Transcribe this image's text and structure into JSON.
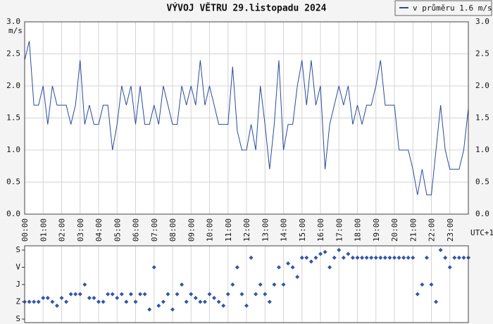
{
  "chart_data": [
    {
      "type": "line",
      "title": "VÝVOJ VĚTRU  29.listopadu 2024",
      "y_label": "m/s",
      "x_label": "UTC+1",
      "legend": "top-right",
      "grid": true,
      "xlim": [
        0,
        1440
      ],
      "xticks": [
        {
          "value": 0,
          "label": "00:00"
        },
        {
          "value": 60,
          "label": "01:00"
        },
        {
          "value": 120,
          "label": "02:00"
        },
        {
          "value": 180,
          "label": "03:00"
        },
        {
          "value": 240,
          "label": "04:00"
        },
        {
          "value": 300,
          "label": "05:00"
        },
        {
          "value": 360,
          "label": "06:00"
        },
        {
          "value": 420,
          "label": "07:00"
        },
        {
          "value": 480,
          "label": "08:00"
        },
        {
          "value": 540,
          "label": "09:00"
        },
        {
          "value": 600,
          "label": "10:00"
        },
        {
          "value": 660,
          "label": "11:00"
        },
        {
          "value": 720,
          "label": "12:00"
        },
        {
          "value": 780,
          "label": "13:00"
        },
        {
          "value": 840,
          "label": "14:00"
        },
        {
          "value": 900,
          "label": "15:00"
        },
        {
          "value": 960,
          "label": "16:00"
        },
        {
          "value": 1020,
          "label": "17:00"
        },
        {
          "value": 1080,
          "label": "18:00"
        },
        {
          "value": 1140,
          "label": "19:00"
        },
        {
          "value": 1200,
          "label": "20:00"
        },
        {
          "value": 1260,
          "label": "21:00"
        },
        {
          "value": 1320,
          "label": "22:00"
        },
        {
          "value": 1380,
          "label": "23:00"
        }
      ],
      "ylim": [
        0,
        3
      ],
      "yticks": [
        {
          "value": 0,
          "label": "0.0"
        },
        {
          "value": 0.5,
          "label": "0.5"
        },
        {
          "value": 1,
          "label": "1.0"
        },
        {
          "value": 1.5,
          "label": "1.5"
        },
        {
          "value": 2,
          "label": "2.0"
        },
        {
          "value": 2.5,
          "label": "2.5"
        },
        {
          "value": 3,
          "label": "3.0"
        }
      ],
      "x": [
        0,
        15,
        30,
        45,
        60,
        75,
        90,
        105,
        120,
        135,
        150,
        165,
        180,
        195,
        210,
        225,
        240,
        255,
        270,
        285,
        300,
        315,
        330,
        345,
        360,
        375,
        390,
        405,
        420,
        435,
        450,
        465,
        480,
        495,
        510,
        525,
        540,
        555,
        570,
        585,
        600,
        615,
        630,
        645,
        660,
        675,
        690,
        705,
        720,
        735,
        750,
        765,
        780,
        795,
        810,
        825,
        840,
        855,
        870,
        885,
        900,
        915,
        930,
        945,
        960,
        975,
        990,
        1005,
        1020,
        1035,
        1050,
        1065,
        1080,
        1095,
        1110,
        1125,
        1140,
        1155,
        1170,
        1185,
        1200,
        1215,
        1230,
        1245,
        1260,
        1275,
        1290,
        1305,
        1320,
        1335,
        1350,
        1365,
        1380,
        1395,
        1410,
        1425,
        1440
      ],
      "series": [
        {
          "name": "v průměru 1.6 m/s",
          "color": "#2a4a9a",
          "values": [
            2.4,
            2.7,
            1.7,
            1.7,
            2.0,
            1.4,
            2.0,
            1.7,
            1.7,
            1.7,
            1.4,
            1.7,
            2.4,
            1.4,
            1.7,
            1.4,
            1.4,
            1.7,
            1.7,
            1.0,
            1.4,
            2.0,
            1.7,
            2.0,
            1.4,
            2.0,
            1.4,
            1.4,
            1.7,
            1.4,
            2.0,
            1.7,
            1.4,
            1.4,
            2.0,
            1.7,
            2.0,
            1.7,
            2.4,
            1.7,
            2.0,
            1.7,
            1.4,
            1.4,
            1.4,
            2.3,
            1.3,
            1.0,
            1.0,
            1.4,
            1.0,
            2.0,
            1.4,
            0.7,
            1.4,
            2.4,
            1.0,
            1.4,
            1.4,
            2.0,
            2.4,
            1.7,
            2.4,
            1.7,
            2.0,
            0.7,
            1.4,
            1.7,
            2.0,
            1.7,
            2.0,
            1.4,
            1.7,
            1.4,
            1.7,
            1.7,
            2.0,
            2.4,
            1.7,
            1.7,
            1.7,
            1.0,
            1.0,
            1.0,
            0.7,
            0.3,
            0.7,
            0.3,
            0.3,
            1.0,
            1.7,
            1.0,
            0.7,
            0.7,
            0.7,
            1.0,
            1.65
          ]
        }
      ]
    },
    {
      "type": "scatter",
      "grid": true,
      "y_inverted": true,
      "xlim": [
        0,
        1440
      ],
      "xticks": [
        0,
        60,
        120,
        180,
        240,
        300,
        360,
        420,
        480,
        540,
        600,
        660,
        720,
        780,
        840,
        900,
        960,
        1020,
        1080,
        1140,
        1200,
        1260,
        1320,
        1380
      ],
      "ylim": [
        0,
        360
      ],
      "yticks": [
        {
          "value": 0,
          "label": "S"
        },
        {
          "value": 90,
          "label": "V"
        },
        {
          "value": 180,
          "label": "J"
        },
        {
          "value": 270,
          "label": "Z"
        },
        {
          "value": 360,
          "label": "S"
        }
      ],
      "x": [
        0,
        15,
        30,
        45,
        60,
        75,
        90,
        105,
        120,
        135,
        150,
        165,
        180,
        195,
        210,
        225,
        240,
        255,
        270,
        285,
        300,
        315,
        330,
        345,
        360,
        375,
        390,
        405,
        420,
        435,
        450,
        465,
        480,
        495,
        510,
        525,
        540,
        555,
        570,
        585,
        600,
        615,
        630,
        645,
        660,
        675,
        690,
        705,
        720,
        735,
        750,
        765,
        780,
        795,
        810,
        825,
        840,
        855,
        870,
        885,
        900,
        915,
        930,
        945,
        960,
        975,
        990,
        1005,
        1020,
        1035,
        1050,
        1065,
        1080,
        1095,
        1110,
        1125,
        1140,
        1155,
        1170,
        1185,
        1200,
        1215,
        1230,
        1245,
        1260,
        1275,
        1290,
        1305,
        1320,
        1335,
        1350,
        1365,
        1380,
        1395,
        1410,
        1425,
        1440
      ],
      "color": "#3355aa",
      "values": [
        270,
        270,
        270,
        270,
        250,
        250,
        270,
        290,
        250,
        270,
        230,
        230,
        230,
        180,
        250,
        250,
        270,
        270,
        230,
        230,
        250,
        230,
        270,
        230,
        270,
        230,
        230,
        310,
        90,
        290,
        270,
        230,
        310,
        230,
        180,
        270,
        230,
        250,
        270,
        270,
        230,
        250,
        270,
        290,
        230,
        180,
        90,
        230,
        290,
        40,
        230,
        180,
        230,
        270,
        180,
        90,
        180,
        70,
        90,
        140,
        40,
        40,
        60,
        40,
        20,
        10,
        90,
        40,
        0,
        40,
        20,
        40,
        40,
        40,
        40,
        40,
        40,
        40,
        40,
        40,
        40,
        40,
        40,
        40,
        40,
        230,
        180,
        40,
        180,
        270,
        0,
        40,
        90,
        40,
        40,
        40,
        40
      ]
    }
  ]
}
